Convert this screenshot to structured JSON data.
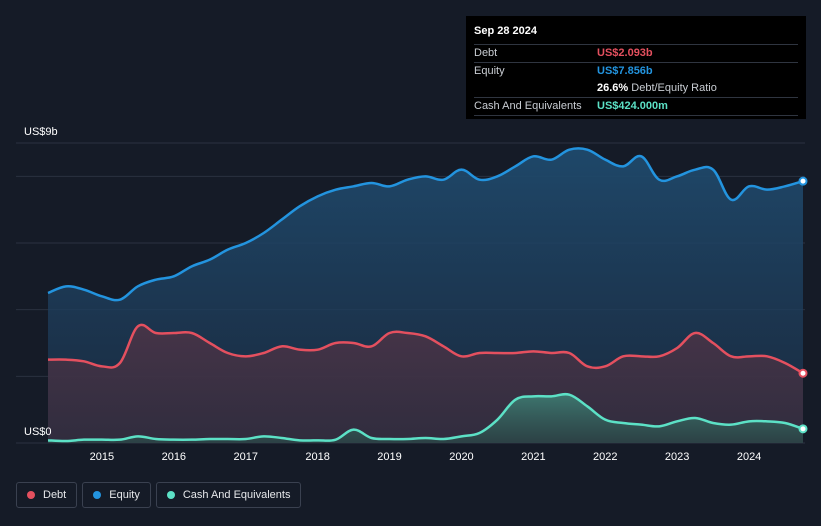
{
  "tooltip": {
    "date": "Sep 28 2024",
    "debt_label": "Debt",
    "debt_value": "US$2.093b",
    "equity_label": "Equity",
    "equity_value": "US$7.856b",
    "ratio_value": "26.6%",
    "ratio_label": "Debt/Equity Ratio",
    "cash_label": "Cash And Equivalents",
    "cash_value": "US$424.000m"
  },
  "legend": {
    "debt": "Debt",
    "equity": "Equity",
    "cash": "Cash And Equivalents"
  },
  "colors": {
    "debt": "#e4505f",
    "equity": "#2394df",
    "cash": "#5ce1c6",
    "background": "#151b27"
  },
  "chart_data": {
    "type": "area",
    "ylabel_top": "US$9b",
    "ylabel_bottom": "US$0",
    "ylim": [
      0,
      9
    ],
    "xlim": [
      2014.25,
      2024.75
    ],
    "x_ticks": [
      "2015",
      "2016",
      "2017",
      "2018",
      "2019",
      "2020",
      "2021",
      "2022",
      "2023",
      "2024"
    ],
    "series": [
      {
        "name": "Equity",
        "points": [
          [
            2014.25,
            4.5
          ],
          [
            2014.5,
            4.7
          ],
          [
            2014.75,
            4.6
          ],
          [
            2015.0,
            4.4
          ],
          [
            2015.25,
            4.3
          ],
          [
            2015.5,
            4.7
          ],
          [
            2015.75,
            4.9
          ],
          [
            2016.0,
            5.0
          ],
          [
            2016.25,
            5.3
          ],
          [
            2016.5,
            5.5
          ],
          [
            2016.75,
            5.8
          ],
          [
            2017.0,
            6.0
          ],
          [
            2017.25,
            6.3
          ],
          [
            2017.5,
            6.7
          ],
          [
            2017.75,
            7.1
          ],
          [
            2018.0,
            7.4
          ],
          [
            2018.25,
            7.6
          ],
          [
            2018.5,
            7.7
          ],
          [
            2018.75,
            7.8
          ],
          [
            2019.0,
            7.7
          ],
          [
            2019.25,
            7.9
          ],
          [
            2019.5,
            8.0
          ],
          [
            2019.75,
            7.9
          ],
          [
            2020.0,
            8.2
          ],
          [
            2020.25,
            7.9
          ],
          [
            2020.5,
            8.0
          ],
          [
            2020.75,
            8.3
          ],
          [
            2021.0,
            8.6
          ],
          [
            2021.25,
            8.5
          ],
          [
            2021.5,
            8.8
          ],
          [
            2021.75,
            8.8
          ],
          [
            2022.0,
            8.5
          ],
          [
            2022.25,
            8.3
          ],
          [
            2022.5,
            8.6
          ],
          [
            2022.75,
            7.9
          ],
          [
            2023.0,
            8.0
          ],
          [
            2023.25,
            8.2
          ],
          [
            2023.5,
            8.2
          ],
          [
            2023.75,
            7.3
          ],
          [
            2024.0,
            7.7
          ],
          [
            2024.25,
            7.6
          ],
          [
            2024.5,
            7.7
          ],
          [
            2024.75,
            7.856
          ]
        ]
      },
      {
        "name": "Debt",
        "points": [
          [
            2014.25,
            2.5
          ],
          [
            2014.5,
            2.5
          ],
          [
            2014.75,
            2.45
          ],
          [
            2015.0,
            2.3
          ],
          [
            2015.25,
            2.4
          ],
          [
            2015.5,
            3.5
          ],
          [
            2015.75,
            3.3
          ],
          [
            2016.0,
            3.3
          ],
          [
            2016.25,
            3.3
          ],
          [
            2016.5,
            3.0
          ],
          [
            2016.75,
            2.7
          ],
          [
            2017.0,
            2.6
          ],
          [
            2017.25,
            2.7
          ],
          [
            2017.5,
            2.9
          ],
          [
            2017.75,
            2.8
          ],
          [
            2018.0,
            2.8
          ],
          [
            2018.25,
            3.0
          ],
          [
            2018.5,
            3.0
          ],
          [
            2018.75,
            2.9
          ],
          [
            2019.0,
            3.3
          ],
          [
            2019.25,
            3.3
          ],
          [
            2019.5,
            3.2
          ],
          [
            2019.75,
            2.9
          ],
          [
            2020.0,
            2.6
          ],
          [
            2020.25,
            2.7
          ],
          [
            2020.5,
            2.7
          ],
          [
            2020.75,
            2.7
          ],
          [
            2021.0,
            2.75
          ],
          [
            2021.25,
            2.7
          ],
          [
            2021.5,
            2.7
          ],
          [
            2021.75,
            2.3
          ],
          [
            2022.0,
            2.3
          ],
          [
            2022.25,
            2.6
          ],
          [
            2022.5,
            2.6
          ],
          [
            2022.75,
            2.6
          ],
          [
            2023.0,
            2.85
          ],
          [
            2023.25,
            3.3
          ],
          [
            2023.5,
            3.0
          ],
          [
            2023.75,
            2.6
          ],
          [
            2024.0,
            2.6
          ],
          [
            2024.25,
            2.6
          ],
          [
            2024.5,
            2.4
          ],
          [
            2024.75,
            2.093
          ]
        ]
      },
      {
        "name": "Cash And Equivalents",
        "points": [
          [
            2014.25,
            0.08
          ],
          [
            2014.5,
            0.06
          ],
          [
            2014.75,
            0.1
          ],
          [
            2015.0,
            0.1
          ],
          [
            2015.25,
            0.1
          ],
          [
            2015.5,
            0.2
          ],
          [
            2015.75,
            0.12
          ],
          [
            2016.0,
            0.1
          ],
          [
            2016.25,
            0.1
          ],
          [
            2016.5,
            0.12
          ],
          [
            2016.75,
            0.12
          ],
          [
            2017.0,
            0.12
          ],
          [
            2017.25,
            0.2
          ],
          [
            2017.5,
            0.15
          ],
          [
            2017.75,
            0.08
          ],
          [
            2018.0,
            0.08
          ],
          [
            2018.25,
            0.1
          ],
          [
            2018.5,
            0.4
          ],
          [
            2018.75,
            0.15
          ],
          [
            2019.0,
            0.12
          ],
          [
            2019.25,
            0.12
          ],
          [
            2019.5,
            0.15
          ],
          [
            2019.75,
            0.12
          ],
          [
            2020.0,
            0.2
          ],
          [
            2020.25,
            0.3
          ],
          [
            2020.5,
            0.7
          ],
          [
            2020.75,
            1.3
          ],
          [
            2021.0,
            1.4
          ],
          [
            2021.25,
            1.4
          ],
          [
            2021.5,
            1.45
          ],
          [
            2021.75,
            1.1
          ],
          [
            2022.0,
            0.7
          ],
          [
            2022.25,
            0.6
          ],
          [
            2022.5,
            0.55
          ],
          [
            2022.75,
            0.5
          ],
          [
            2023.0,
            0.65
          ],
          [
            2023.25,
            0.75
          ],
          [
            2023.5,
            0.6
          ],
          [
            2023.75,
            0.55
          ],
          [
            2024.0,
            0.65
          ],
          [
            2024.25,
            0.65
          ],
          [
            2024.5,
            0.6
          ],
          [
            2024.75,
            0.424
          ]
        ]
      }
    ]
  }
}
